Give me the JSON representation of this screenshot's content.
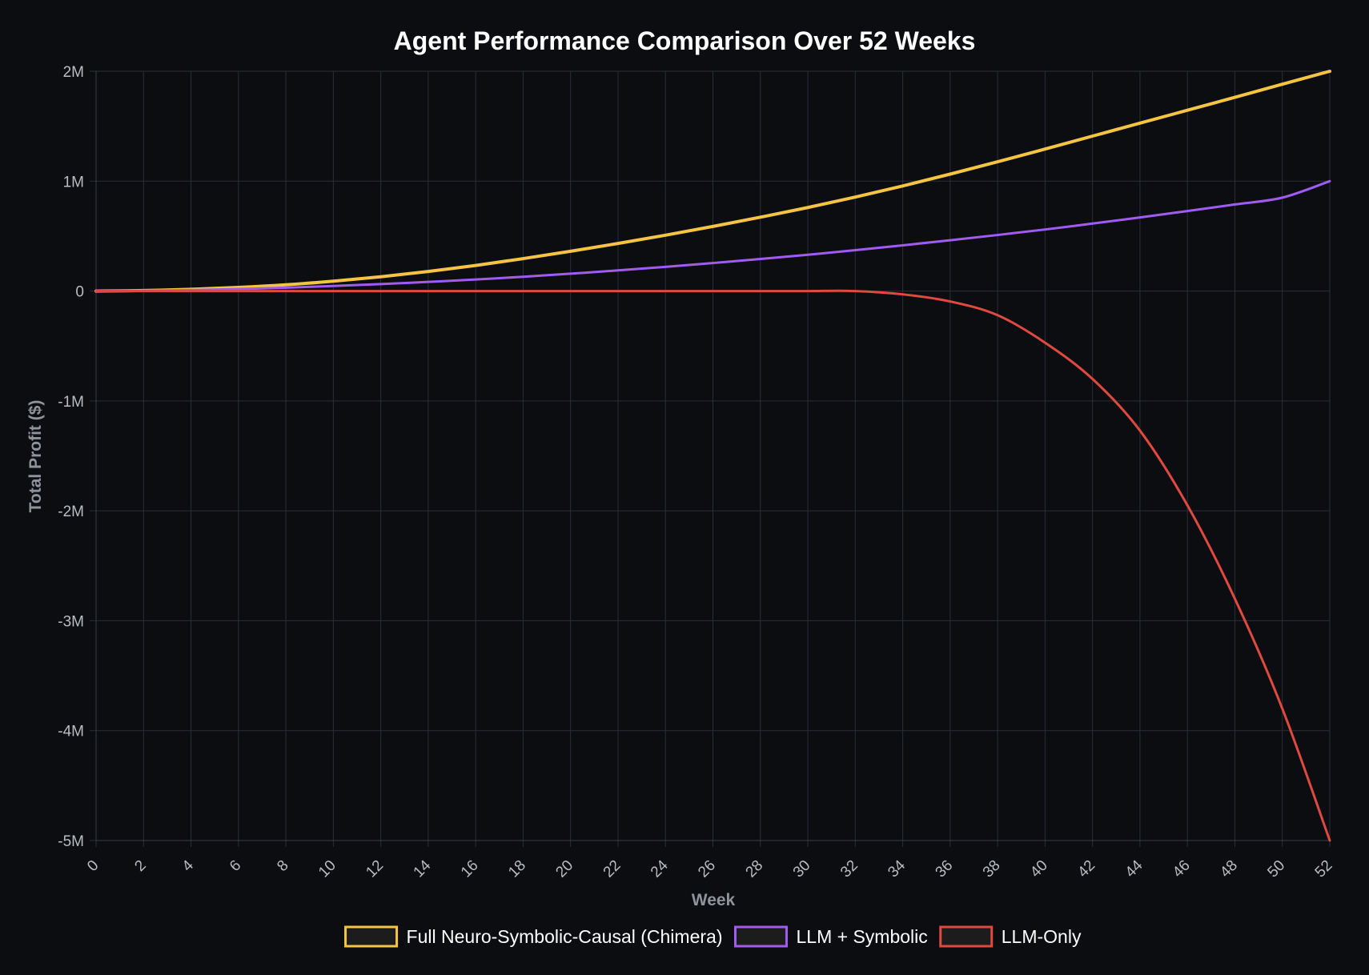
{
  "chart_data": {
    "type": "line",
    "title": "Agent Performance Comparison Over 52 Weeks",
    "xlabel": "Week",
    "ylabel": "Total Profit ($)",
    "xlim": [
      0,
      52
    ],
    "ylim": [
      -5000000,
      2000000
    ],
    "x_ticks": [
      "0",
      "2",
      "4",
      "6",
      "8",
      "10",
      "12",
      "14",
      "16",
      "18",
      "20",
      "22",
      "24",
      "26",
      "28",
      "30",
      "32",
      "34",
      "36",
      "38",
      "40",
      "42",
      "44",
      "46",
      "48",
      "50",
      "52"
    ],
    "y_ticks": [
      {
        "value": 2000000,
        "label": "2M"
      },
      {
        "value": 1000000,
        "label": "1M"
      },
      {
        "value": 0,
        "label": "0"
      },
      {
        "value": -1000000,
        "label": "-1M"
      },
      {
        "value": -2000000,
        "label": "-2M"
      },
      {
        "value": -3000000,
        "label": "-3M"
      },
      {
        "value": -4000000,
        "label": "-4M"
      },
      {
        "value": -5000000,
        "label": "-5M"
      }
    ],
    "grid": true,
    "legend_position": "bottom",
    "x": [
      0,
      2,
      4,
      6,
      8,
      10,
      12,
      14,
      16,
      18,
      20,
      22,
      24,
      26,
      28,
      30,
      32,
      34,
      36,
      38,
      40,
      42,
      44,
      46,
      48,
      50,
      52
    ],
    "series": [
      {
        "name": "Full Neuro-Symbolic-Causal (Chimera)",
        "color": "#f5c443",
        "values": [
          0,
          5000,
          16000,
          33000,
          57000,
          90000,
          130000,
          178000,
          233000,
          295000,
          362000,
          433000,
          508000,
          588000,
          672000,
          760000,
          855000,
          956000,
          1064000,
          1176000,
          1292000,
          1410000,
          1528000,
          1645000,
          1763000,
          1882000,
          2000000
        ]
      },
      {
        "name": "LLM + Symbolic",
        "color": "#a05cf0",
        "values": [
          0,
          3000,
          9000,
          18000,
          31000,
          46000,
          63000,
          83000,
          105000,
          130000,
          158000,
          188000,
          220000,
          255000,
          292000,
          330000,
          372000,
          416000,
          462000,
          510000,
          560000,
          614000,
          670000,
          728000,
          788000,
          850000,
          1000000
        ]
      },
      {
        "name": "LLM-Only",
        "color": "#e0493f",
        "values": [
          0,
          0,
          0,
          0,
          0,
          0,
          0,
          0,
          0,
          0,
          0,
          0,
          0,
          0,
          0,
          0,
          0,
          -30000,
          -95000,
          -220000,
          -470000,
          -800000,
          -1270000,
          -1950000,
          -2800000,
          -3800000,
          -5000000
        ]
      }
    ]
  }
}
